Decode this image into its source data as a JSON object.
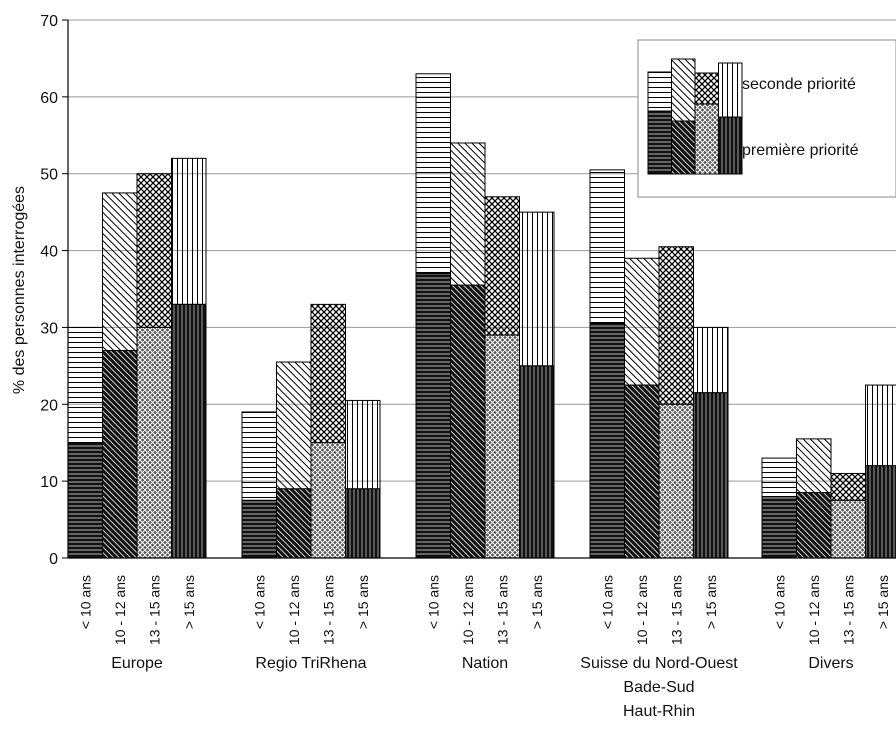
{
  "chart_data": {
    "type": "bar",
    "stacked": true,
    "ylabel": "% des personnes interrogées",
    "ylim": [
      0,
      70
    ],
    "yticks": [
      0,
      10,
      20,
      30,
      40,
      50,
      60,
      70
    ],
    "grid": true,
    "legend_position": "top-right",
    "age_labels": [
      "< 10  ans",
      "10 - 12 ans",
      "13 - 15 ans",
      "> 15 ans"
    ],
    "groups": [
      {
        "label_lines": [
          "Europe"
        ],
        "first": [
          15,
          27,
          30,
          33
        ],
        "total": [
          30,
          47.5,
          50,
          52
        ]
      },
      {
        "label_lines": [
          "Regio TriRhena"
        ],
        "first": [
          7.5,
          9,
          15,
          9
        ],
        "total": [
          19,
          25.5,
          33,
          20.5
        ]
      },
      {
        "label_lines": [
          "Nation"
        ],
        "first": [
          37,
          35.5,
          29,
          25
        ],
        "total": [
          63,
          54,
          47,
          45
        ]
      },
      {
        "label_lines": [
          "Suisse du Nord-Ouest",
          "Bade-Sud",
          "Haut-Rhin"
        ],
        "first": [
          30.5,
          22.5,
          20,
          21.5
        ],
        "total": [
          50.5,
          39,
          40.5,
          30
        ]
      },
      {
        "label_lines": [
          "Divers"
        ],
        "first": [
          8,
          8.5,
          7.5,
          12
        ],
        "total": [
          13,
          15.5,
          11,
          22.5
        ]
      }
    ],
    "legend": {
      "second": "seconde priorité",
      "first": "première priorité"
    }
  }
}
